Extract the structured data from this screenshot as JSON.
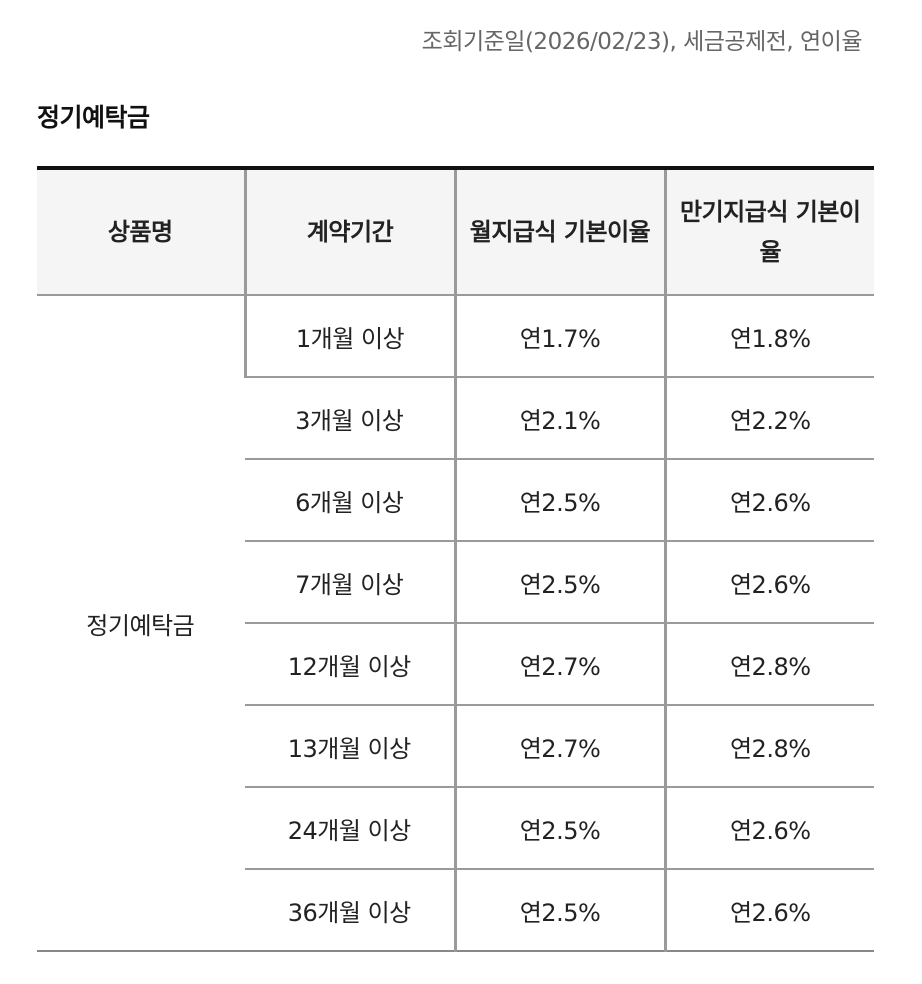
{
  "reference_note": "조회기준일(2026/02/23), 세금공제전, 연이율",
  "section_title": "정기예탁금",
  "table": {
    "headers": {
      "product": "상품명",
      "term": "계약기간",
      "monthly_rate": "월지급식 기본이율",
      "maturity_rate": "만기지급식 기본이율"
    },
    "product_name": "정기예탁금",
    "rows": [
      {
        "term": "1개월 이상",
        "monthly": "연1.7%",
        "maturity": "연1.8%"
      },
      {
        "term": "3개월 이상",
        "monthly": "연2.1%",
        "maturity": "연2.2%"
      },
      {
        "term": "6개월 이상",
        "monthly": "연2.5%",
        "maturity": "연2.6%"
      },
      {
        "term": "7개월 이상",
        "monthly": "연2.5%",
        "maturity": "연2.6%"
      },
      {
        "term": "12개월 이상",
        "monthly": "연2.7%",
        "maturity": "연2.8%"
      },
      {
        "term": "13개월 이상",
        "monthly": "연2.7%",
        "maturity": "연2.8%"
      },
      {
        "term": "24개월 이상",
        "monthly": "연2.5%",
        "maturity": "연2.6%"
      },
      {
        "term": "36개월 이상",
        "monthly": "연2.5%",
        "maturity": "연2.6%"
      }
    ]
  }
}
